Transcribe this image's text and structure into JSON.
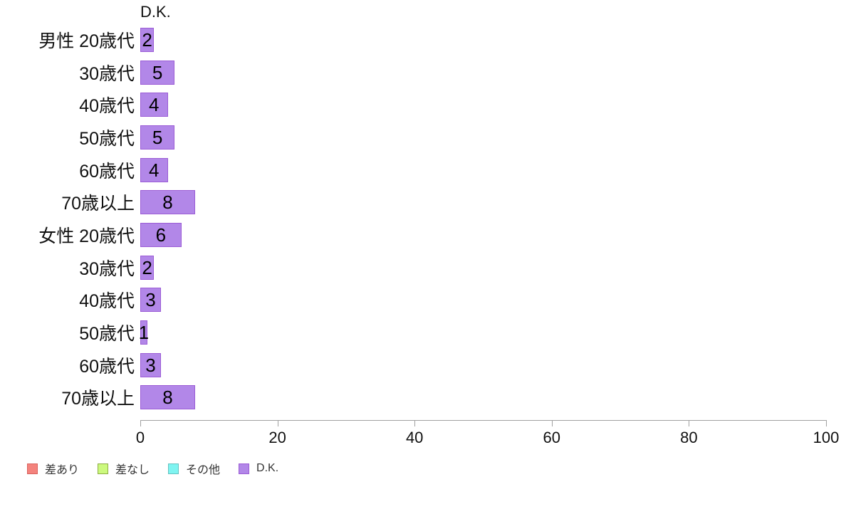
{
  "chart_data": {
    "type": "bar",
    "orientation": "horizontal",
    "title": "D.K.",
    "categories": [
      "男性 20歳代",
      "30歳代",
      "40歳代",
      "50歳代",
      "60歳代",
      "70歳以上",
      "女性 20歳代",
      "30歳代",
      "40歳代",
      "50歳代",
      "60歳代",
      "70歳以上"
    ],
    "values": [
      2,
      5,
      4,
      5,
      4,
      8,
      6,
      2,
      3,
      1,
      3,
      8
    ],
    "value_labels_shown": true,
    "xlabel": "",
    "ylabel": "",
    "xlim": [
      0,
      100
    ],
    "x_ticks": [
      0,
      20,
      40,
      60,
      80,
      100
    ],
    "grid": false,
    "bar_fill_color": "#b287e8",
    "bar_border_color": "#9b5cd6",
    "value_label_color": "#000000",
    "axis_color": "#a0a0a0",
    "legend": {
      "position": "bottom-left",
      "items": [
        {
          "label": "差あり",
          "fill": "#f4837d",
          "border": "#d9625e"
        },
        {
          "label": "差なし",
          "fill": "#ccf97e",
          "border": "#8fae44"
        },
        {
          "label": "その他",
          "fill": "#7ff4f1",
          "border": "#66c2c0"
        },
        {
          "label": "D.K.",
          "fill": "#b287e8",
          "border": "#9b5cd6"
        }
      ]
    }
  }
}
